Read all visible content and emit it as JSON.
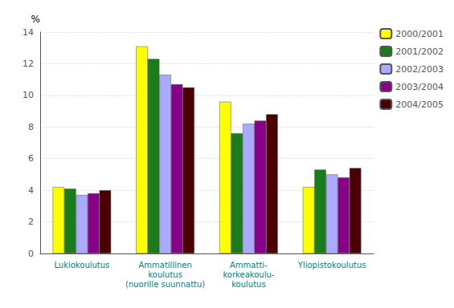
{
  "chart_data": {
    "type": "bar",
    "y_label": "%",
    "categories": [
      "Lukiokoulutus",
      "Ammatillinen\nkoulutus\n(nuorille suunnattu)",
      "Ammatti-\nkorkeakoulu-\nkoulutus",
      "Yliopistokoulutus"
    ],
    "series": [
      {
        "name": "2000/2001",
        "color": "#ffff00",
        "values": [
          4.2,
          13.1,
          9.6,
          4.2
        ]
      },
      {
        "name": "2001/2002",
        "color": "#1a7c1a",
        "values": [
          4.1,
          12.3,
          7.6,
          5.3
        ]
      },
      {
        "name": "2002/2003",
        "color": "#aaaaff",
        "values": [
          3.7,
          11.3,
          8.2,
          5.0
        ]
      },
      {
        "name": "2003/2004",
        "color": "#880088",
        "values": [
          3.8,
          10.7,
          8.4,
          4.8
        ]
      },
      {
        "name": "2004/2005",
        "color": "#4a0000",
        "values": [
          4.0,
          10.5,
          8.8,
          5.4
        ]
      }
    ],
    "ylim": [
      0,
      14
    ],
    "yticks": [
      0,
      2,
      4,
      6,
      8,
      10,
      12,
      14
    ],
    "grid": true,
    "legend": "upper right"
  }
}
